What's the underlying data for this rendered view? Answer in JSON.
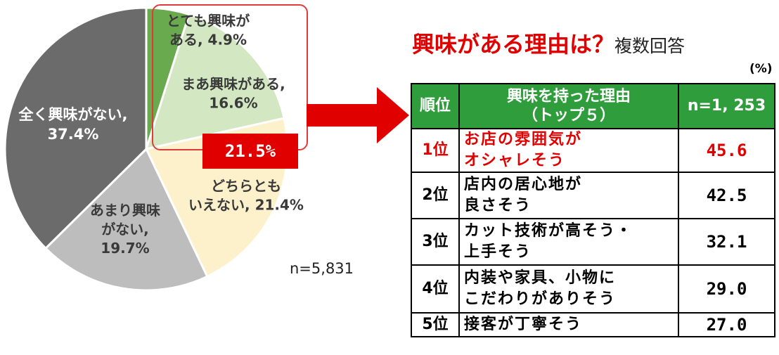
{
  "pie": {
    "slices": [
      {
        "label_lines": [
          "とても興味が",
          "ある, 4.9%"
        ],
        "value": 4.9,
        "color": "#6aaa4e"
      },
      {
        "label_lines": [
          "まあ興味がある,",
          "16.6%"
        ],
        "value": 16.6,
        "color": "#d3e8c2"
      },
      {
        "label_lines": [
          "どちらとも",
          "いえない, 21.4%"
        ],
        "value": 21.4,
        "color": "#fdf1cc"
      },
      {
        "label_lines": [
          "あまり興味",
          "がない,",
          "19.7%"
        ],
        "value": 19.7,
        "color": "#bdbdbd"
      },
      {
        "label_lines": [
          "全く興味がない,",
          "37.4%"
        ],
        "value": 37.4,
        "color": "#6b6b6b"
      }
    ],
    "highlight_total": "21.5%",
    "sample_size": "n=5,831"
  },
  "table_title": {
    "main": "興味がある理由は？",
    "sub": "複数回答"
  },
  "unit": "(%)",
  "table": {
    "headers": {
      "rank": "順位",
      "reason_lines": [
        "興味を持った理由",
        "（トップ５）"
      ],
      "value": "n=1, 253"
    },
    "rows": [
      {
        "rank": "1位",
        "reason_lines": [
          "お店の雰囲気が",
          "オシャレそう"
        ],
        "value": "45.6"
      },
      {
        "rank": "2位",
        "reason_lines": [
          "店内の居心地が",
          "良さそう"
        ],
        "value": "42.5"
      },
      {
        "rank": "3位",
        "reason_lines": [
          "カット技術が高そう・",
          "上手そう"
        ],
        "value": "32.1"
      },
      {
        "rank": "4位",
        "reason_lines": [
          "内装や家具、小物に",
          "こだわりがありそう"
        ],
        "value": "29.0"
      },
      {
        "rank": "5位",
        "reason_lines": [
          "接客が丁寧そう"
        ],
        "value": "27.0"
      }
    ]
  },
  "chart_data": [
    {
      "type": "pie",
      "categories": [
        "とても興味がある",
        "まあ興味がある",
        "どちらともいえない",
        "あまり興味がない",
        "全く興味がない"
      ],
      "values": [
        4.9,
        16.6,
        21.4,
        19.7,
        37.4
      ],
      "annotations": [
        "21.5%",
        "n=5,831"
      ]
    },
    {
      "type": "table",
      "columns": [
        "順位",
        "興味を持った理由（トップ５）",
        "n=1, 253"
      ],
      "rows": [
        [
          "1位",
          "お店の雰囲気がオシャレそう",
          45.6
        ],
        [
          "2位",
          "店内の居心地が良さそう",
          42.5
        ],
        [
          "3位",
          "カット技術が高そう・上手そう",
          32.1
        ],
        [
          "4位",
          "内装や家具、小物にこだわりがありそう",
          29.0
        ],
        [
          "5位",
          "接客が丁寧そう",
          27.0
        ]
      ]
    }
  ]
}
